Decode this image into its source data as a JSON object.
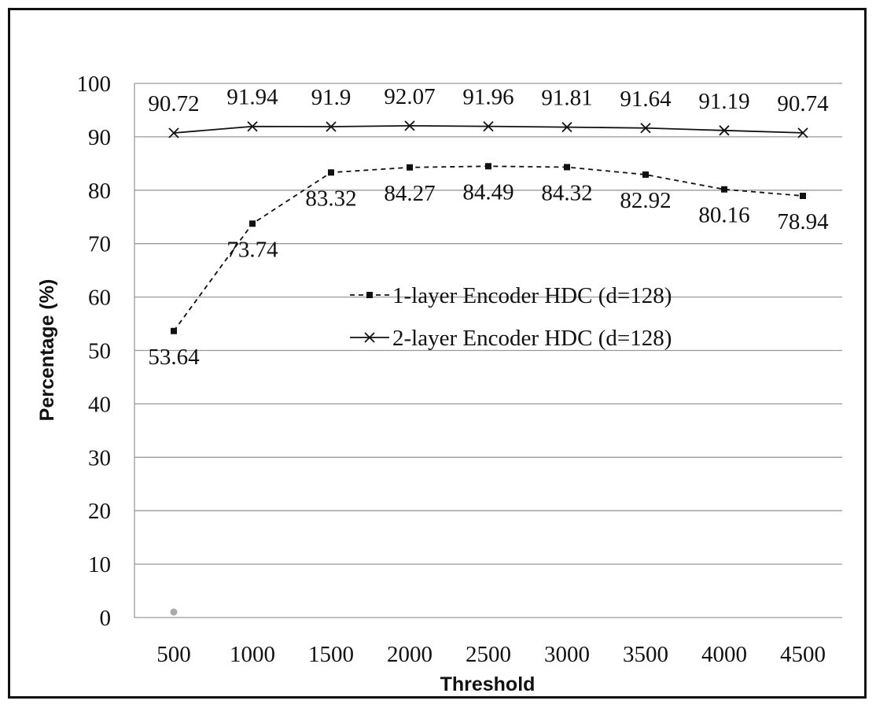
{
  "chart_data": {
    "type": "line",
    "title": "",
    "xlabel": "Threshold",
    "ylabel": "Percentage (%)",
    "categories": [
      "500",
      "1000",
      "1500",
      "2000",
      "2500",
      "3000",
      "3500",
      "4000",
      "4500"
    ],
    "ylim": [
      0,
      100
    ],
    "yticks": [
      0,
      10,
      20,
      30,
      40,
      50,
      60,
      70,
      80,
      90,
      100
    ],
    "grid": true,
    "legend_position": "center-right",
    "series": [
      {
        "name": "1-layer Encoder HDC (d=128)",
        "style": "dashed",
        "marker": "square",
        "values": [
          53.64,
          73.74,
          83.32,
          84.27,
          84.49,
          84.32,
          82.92,
          80.16,
          78.94
        ],
        "labels": [
          "53.64",
          "73.74",
          "83.32",
          "84.27",
          "84.49",
          "84.32",
          "82.92",
          "80.16",
          "78.94"
        ]
      },
      {
        "name": "2-layer Encoder HDC (d=128)",
        "style": "solid",
        "marker": "x",
        "values": [
          90.72,
          91.94,
          91.9,
          92.07,
          91.96,
          91.81,
          91.64,
          91.19,
          90.74
        ],
        "labels": [
          "90.72",
          "91.94",
          "91.9",
          "92.07",
          "91.96",
          "91.81",
          "91.64",
          "91.19",
          "90.74"
        ]
      }
    ],
    "colors": {
      "line": "#111111",
      "grid": "#9a9a9a",
      "stray_dot": "#aaaaaa"
    }
  }
}
